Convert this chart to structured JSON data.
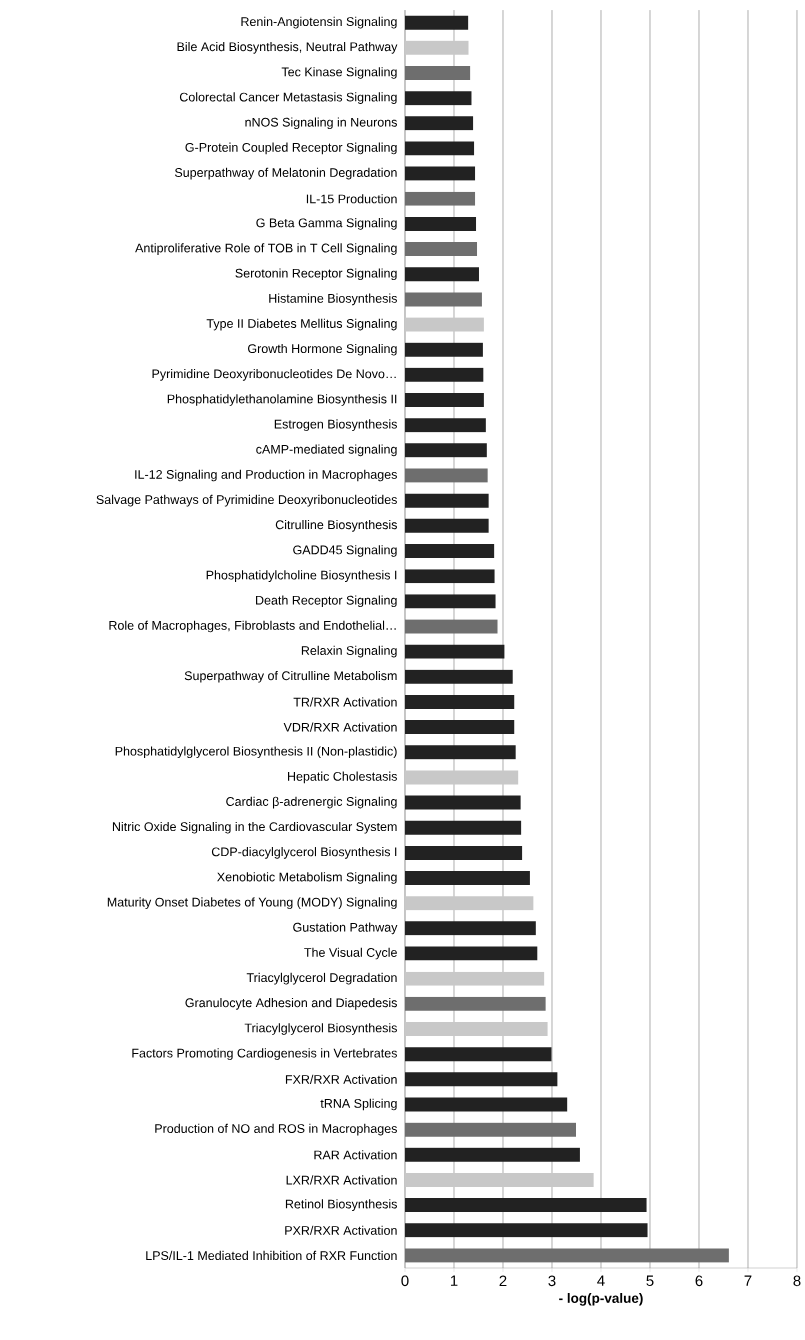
{
  "chart_data": {
    "type": "bar",
    "orientation": "horizontal",
    "xlabel": "- log(p-value)",
    "categories": [
      "Renin-Angiotensin Signaling",
      "Bile Acid Biosynthesis, Neutral Pathway",
      "Tec Kinase Signaling",
      "Colorectal Cancer Metastasis Signaling",
      "nNOS Signaling in Neurons",
      "G-Protein Coupled Receptor Signaling",
      "Superpathway of Melatonin Degradation",
      "IL-15 Production",
      "G Beta Gamma Signaling",
      "Antiproliferative Role of TOB in T Cell Signaling",
      "Serotonin Receptor Signaling",
      "Histamine Biosynthesis",
      "Type II Diabetes Mellitus Signaling",
      "Growth Hormone Signaling",
      "Pyrimidine Deoxyribonucleotides De Novo…",
      "Phosphatidylethanolamine Biosynthesis II",
      "Estrogen Biosynthesis",
      "cAMP-mediated signaling",
      "IL-12 Signaling and Production in Macrophages",
      "Salvage Pathways of Pyrimidine Deoxyribonucleotides",
      "Citrulline Biosynthesis",
      "GADD45 Signaling",
      "Phosphatidylcholine Biosynthesis I",
      "Death Receptor Signaling",
      "Role of Macrophages, Fibroblasts and Endothelial…",
      "Relaxin Signaling",
      "Superpathway of Citrulline Metabolism",
      "TR/RXR Activation",
      "VDR/RXR Activation",
      "Phosphatidylglycerol Biosynthesis II (Non-plastidic)",
      "Hepatic Cholestasis",
      "Cardiac β-adrenergic Signaling",
      "Nitric Oxide Signaling in the Cardiovascular System",
      "CDP-diacylglycerol Biosynthesis I",
      "Xenobiotic Metabolism Signaling",
      "Maturity Onset Diabetes of Young (MODY) Signaling",
      "Gustation Pathway",
      "The Visual Cycle",
      "Triacylglycerol Degradation",
      "Granulocyte Adhesion and Diapedesis",
      "Triacylglycerol Biosynthesis",
      "Factors Promoting Cardiogenesis in Vertebrates",
      "FXR/RXR Activation",
      "tRNA Splicing",
      "Production of NO and ROS in Macrophages",
      "RAR Activation",
      "LXR/RXR Activation",
      "Retinol Biosynthesis",
      "PXR/RXR Activation",
      "LPS/IL-1 Mediated Inhibition of RXR Function"
    ],
    "values": [
      1.29,
      1.3,
      1.33,
      1.36,
      1.39,
      1.41,
      1.43,
      1.43,
      1.45,
      1.47,
      1.51,
      1.57,
      1.61,
      1.59,
      1.6,
      1.61,
      1.65,
      1.67,
      1.69,
      1.71,
      1.71,
      1.82,
      1.83,
      1.85,
      1.89,
      2.03,
      2.2,
      2.23,
      2.23,
      2.26,
      2.31,
      2.36,
      2.37,
      2.39,
      2.55,
      2.62,
      2.67,
      2.7,
      2.84,
      2.87,
      2.91,
      2.99,
      3.11,
      3.31,
      3.49,
      3.57,
      3.85,
      4.93,
      4.95,
      6.61
    ],
    "colors": [
      "#222222",
      "#c8c8c8",
      "#6e6e6e",
      "#222222",
      "#222222",
      "#222222",
      "#222222",
      "#6e6e6e",
      "#222222",
      "#6e6e6e",
      "#222222",
      "#6e6e6e",
      "#c8c8c8",
      "#222222",
      "#222222",
      "#222222",
      "#222222",
      "#222222",
      "#6e6e6e",
      "#222222",
      "#222222",
      "#222222",
      "#222222",
      "#222222",
      "#6e6e6e",
      "#222222",
      "#222222",
      "#222222",
      "#222222",
      "#222222",
      "#c8c8c8",
      "#222222",
      "#222222",
      "#222222",
      "#222222",
      "#c8c8c8",
      "#222222",
      "#222222",
      "#c8c8c8",
      "#6e6e6e",
      "#c8c8c8",
      "#222222",
      "#222222",
      "#222222",
      "#6e6e6e",
      "#222222",
      "#c8c8c8",
      "#222222",
      "#222222",
      "#6e6e6e"
    ],
    "xlim": [
      0,
      8
    ],
    "xticks": [
      0,
      1,
      2,
      3,
      4,
      5,
      6,
      7,
      8
    ],
    "grid": "x"
  }
}
